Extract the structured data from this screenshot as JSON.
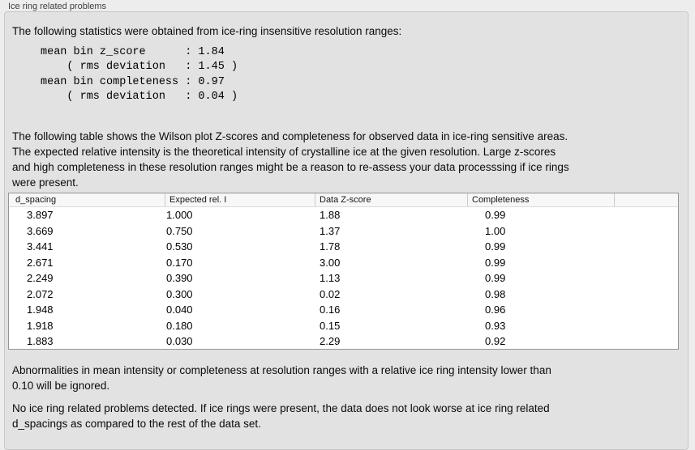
{
  "group": {
    "title": "Ice ring related problems"
  },
  "intro": "The following statistics were obtained from ice-ring insensitive resolution ranges:",
  "stats": {
    "lines": [
      "mean bin z_score      : 1.84",
      "    ( rms deviation   : 1.45 )",
      "mean bin completeness : 0.97",
      "    ( rms deviation   : 0.04 )"
    ]
  },
  "table_intro": {
    "lines": [
      "The following table shows the Wilson plot Z-scores and completeness for observed data in ice-ring sensitive areas.",
      "The expected relative intensity is the theoretical intensity of crystalline ice at the given resolution. Large z-scores",
      "and high completeness in these resolution ranges might be a reason to re-assess your data processsing if ice rings",
      "were present."
    ]
  },
  "table": {
    "columns": [
      "d_spacing",
      "Expected rel. I",
      "Data Z-score",
      "Completeness"
    ],
    "rows": [
      [
        "3.897",
        "1.000",
        "1.88",
        "0.99"
      ],
      [
        "3.669",
        "0.750",
        "1.37",
        "1.00"
      ],
      [
        "3.441",
        "0.530",
        "1.78",
        "0.99"
      ],
      [
        "2.671",
        "0.170",
        "3.00",
        "0.99"
      ],
      [
        "2.249",
        "0.390",
        "1.13",
        "0.99"
      ],
      [
        "2.072",
        "0.300",
        "0.02",
        "0.98"
      ],
      [
        "1.948",
        "0.040",
        "0.16",
        "0.96"
      ],
      [
        "1.918",
        "0.180",
        "0.15",
        "0.93"
      ],
      [
        "1.883",
        "0.030",
        "2.29",
        "0.92"
      ]
    ]
  },
  "note_ignore": {
    "lines": [
      "Abnormalities in mean intensity or completeness at resolution ranges with a relative ice ring intensity lower than",
      "0.10 will be ignored."
    ]
  },
  "conclusion": {
    "lines": [
      "No ice ring related problems detected. If ice rings were present, the data does not look worse at ice ring related",
      "d_spacings as compared to the rest of the data set."
    ]
  },
  "colors": {
    "window_bg": "#ededed",
    "box_bg": "#e2e2e2",
    "box_border": "#c7c7c7",
    "table_border": "#949494",
    "header_bg": "#f7f7f7"
  }
}
